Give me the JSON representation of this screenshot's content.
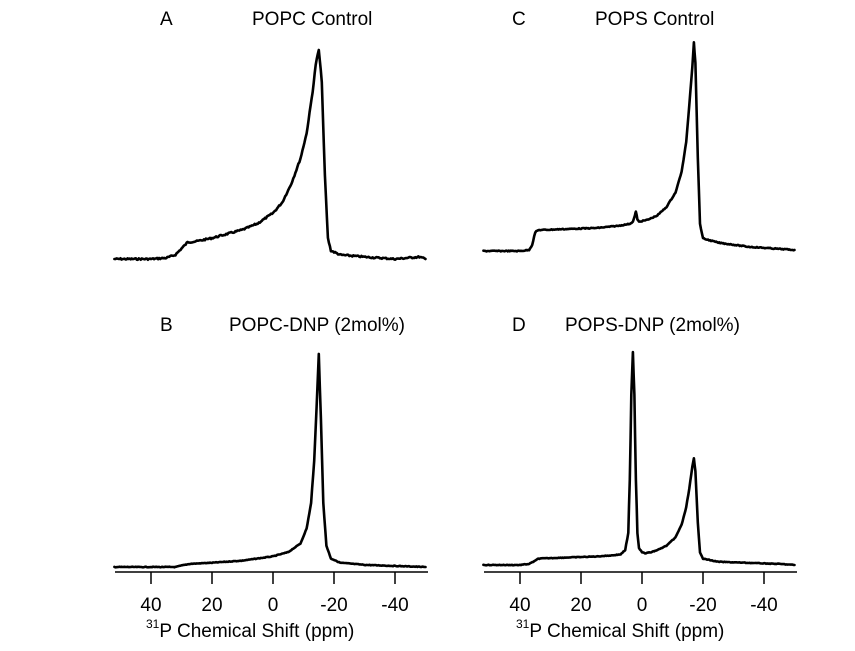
{
  "chart_data": [
    {
      "type": "line",
      "panel": "A",
      "title": "POPC Control",
      "xlabel": "",
      "xlim": [
        52,
        -50
      ],
      "x_ticks": [
        40,
        20,
        0,
        -20,
        -40
      ],
      "show_x_axis": false,
      "description": "Axially symmetric powder pattern with low-field shoulder at ~28 ppm and main peak at ~-15 ppm",
      "series": [
        {
          "name": "POPC Control",
          "points": [
            [
              52,
              0.0
            ],
            [
              45,
              0.0
            ],
            [
              40,
              0.0
            ],
            [
              35,
              0.005
            ],
            [
              32,
              0.02
            ],
            [
              30,
              0.05
            ],
            [
              28,
              0.08
            ],
            [
              25,
              0.085
            ],
            [
              20,
              0.1
            ],
            [
              15,
              0.12
            ],
            [
              10,
              0.14
            ],
            [
              5,
              0.17
            ],
            [
              0,
              0.22
            ],
            [
              -3,
              0.27
            ],
            [
              -6,
              0.36
            ],
            [
              -9,
              0.48
            ],
            [
              -11,
              0.6
            ],
            [
              -13,
              0.8
            ],
            [
              -14,
              0.93
            ],
            [
              -15,
              1.0
            ],
            [
              -16,
              0.85
            ],
            [
              -17,
              0.4
            ],
            [
              -18,
              0.1
            ],
            [
              -19,
              0.04
            ],
            [
              -22,
              0.02
            ],
            [
              -30,
              0.01
            ],
            [
              -40,
              0.0
            ],
            [
              -48,
              0.01
            ],
            [
              -50,
              0.0
            ]
          ]
        }
      ]
    },
    {
      "type": "line",
      "panel": "B",
      "title": "POPC-DNP (2mol%)",
      "xlabel": "31P Chemical Shift (ppm)",
      "xlim": [
        52,
        -50
      ],
      "x_ticks": [
        40,
        20,
        0,
        -20,
        -40
      ],
      "show_x_axis": true,
      "description": "Narrow isotropic-like peak at ~-15 ppm with weak broad shoulder",
      "series": [
        {
          "name": "POPC-DNP (2mol%)",
          "points": [
            [
              52,
              0.0
            ],
            [
              40,
              0.0
            ],
            [
              32,
              0.0
            ],
            [
              29,
              0.01
            ],
            [
              27,
              0.015
            ],
            [
              20,
              0.02
            ],
            [
              10,
              0.03
            ],
            [
              5,
              0.04
            ],
            [
              0,
              0.05
            ],
            [
              -5,
              0.07
            ],
            [
              -9,
              0.11
            ],
            [
              -11,
              0.18
            ],
            [
              -12.5,
              0.3
            ],
            [
              -13.5,
              0.5
            ],
            [
              -14.3,
              0.75
            ],
            [
              -15,
              1.0
            ],
            [
              -15.7,
              0.7
            ],
            [
              -16.5,
              0.3
            ],
            [
              -17.5,
              0.1
            ],
            [
              -19,
              0.04
            ],
            [
              -22,
              0.02
            ],
            [
              -30,
              0.01
            ],
            [
              -40,
              0.005
            ],
            [
              -50,
              0.0
            ]
          ]
        }
      ]
    },
    {
      "type": "line",
      "panel": "C",
      "title": "POPS Control",
      "xlabel": "",
      "xlim": [
        52,
        -50
      ],
      "x_ticks": [
        40,
        20,
        0,
        -20,
        -40
      ],
      "show_x_axis": false,
      "description": "Powder pattern with sharp low-field edge at ~36 ppm, small peak at ~2 ppm, main peak at ~-17 ppm",
      "series": [
        {
          "name": "POPS Control",
          "points": [
            [
              52,
              0.0
            ],
            [
              45,
              0.0
            ],
            [
              40,
              0.0
            ],
            [
              37,
              0.005
            ],
            [
              36,
              0.03
            ],
            [
              35,
              0.09
            ],
            [
              34,
              0.1
            ],
            [
              25,
              0.105
            ],
            [
              15,
              0.11
            ],
            [
              8,
              0.12
            ],
            [
              4,
              0.13
            ],
            [
              3,
              0.14
            ],
            [
              2.3,
              0.17
            ],
            [
              2,
              0.19
            ],
            [
              1.5,
              0.15
            ],
            [
              1,
              0.14
            ],
            [
              -2,
              0.15
            ],
            [
              -5,
              0.17
            ],
            [
              -8,
              0.21
            ],
            [
              -11,
              0.28
            ],
            [
              -13,
              0.38
            ],
            [
              -14.5,
              0.52
            ],
            [
              -15.5,
              0.7
            ],
            [
              -16.5,
              0.88
            ],
            [
              -17,
              1.0
            ],
            [
              -17.5,
              0.9
            ],
            [
              -18.3,
              0.45
            ],
            [
              -19,
              0.13
            ],
            [
              -20,
              0.06
            ],
            [
              -25,
              0.04
            ],
            [
              -35,
              0.02
            ],
            [
              -45,
              0.01
            ],
            [
              -50,
              0.005
            ]
          ]
        }
      ]
    },
    {
      "type": "line",
      "panel": "D",
      "title": "POPS-DNP (2mol%)",
      "xlabel": "31P Chemical Shift (ppm)",
      "xlim": [
        52,
        -50
      ],
      "x_ticks": [
        40,
        20,
        0,
        -20,
        -40
      ],
      "show_x_axis": true,
      "description": "Sharp isotropic peak at ~3 ppm and second peak at ~-17 ppm (~0.5 relative height)",
      "series": [
        {
          "name": "POPS-DNP (2mol%)",
          "points": [
            [
              52,
              0.0
            ],
            [
              40,
              0.0
            ],
            [
              37,
              0.005
            ],
            [
              35,
              0.02
            ],
            [
              34,
              0.03
            ],
            [
              25,
              0.035
            ],
            [
              15,
              0.04
            ],
            [
              10,
              0.045
            ],
            [
              7,
              0.05
            ],
            [
              5.5,
              0.07
            ],
            [
              4.5,
              0.15
            ],
            [
              4,
              0.4
            ],
            [
              3.5,
              0.8
            ],
            [
              3,
              1.0
            ],
            [
              2.5,
              0.8
            ],
            [
              2,
              0.4
            ],
            [
              1.5,
              0.15
            ],
            [
              1,
              0.08
            ],
            [
              0,
              0.06
            ],
            [
              -1,
              0.055
            ],
            [
              -3,
              0.06
            ],
            [
              -5,
              0.07
            ],
            [
              -8,
              0.09
            ],
            [
              -11,
              0.13
            ],
            [
              -13,
              0.19
            ],
            [
              -14.5,
              0.27
            ],
            [
              -15.5,
              0.36
            ],
            [
              -16.5,
              0.46
            ],
            [
              -17,
              0.5
            ],
            [
              -17.5,
              0.44
            ],
            [
              -18.3,
              0.2
            ],
            [
              -19,
              0.06
            ],
            [
              -20,
              0.03
            ],
            [
              -25,
              0.015
            ],
            [
              -35,
              0.01
            ],
            [
              -45,
              0.005
            ],
            [
              -50,
              0.0
            ]
          ]
        }
      ]
    }
  ],
  "panels": {
    "A": {
      "letter": "A",
      "title": "POPC Control"
    },
    "B": {
      "letter": "B",
      "title": "POPC-DNP (2mol%)"
    },
    "C": {
      "letter": "C",
      "title": "POPS Control"
    },
    "D": {
      "letter": "D",
      "title": "POPS-DNP (2mol%)"
    }
  },
  "axis": {
    "tick_labels": [
      "40",
      "20",
      "0",
      "-20",
      "-40"
    ],
    "xlabel_sup": "31",
    "xlabel_main": "P Chemical Shift (ppm)"
  }
}
